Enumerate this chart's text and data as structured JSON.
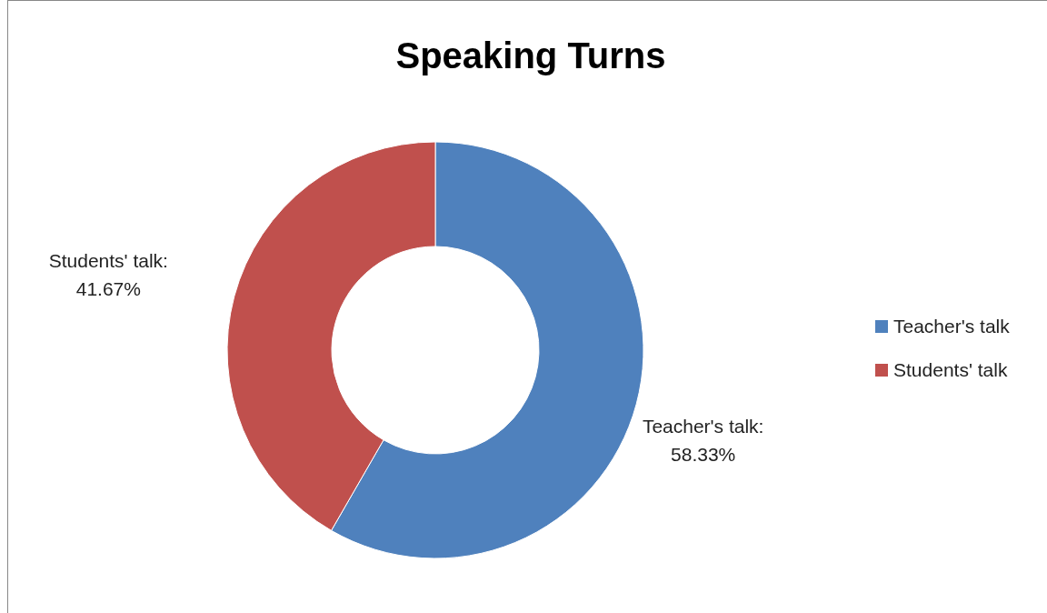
{
  "chart_data": {
    "type": "donut",
    "title": "Speaking Turns",
    "categories": [
      "Teacher's talk",
      "Students' talk"
    ],
    "values": [
      58.33,
      41.67
    ],
    "colors": [
      "#4f81bd",
      "#c0504d"
    ],
    "value_labels": [
      "Teacher's talk: 58.33%",
      "Students' talk: 41.67%"
    ],
    "legend": "right"
  }
}
